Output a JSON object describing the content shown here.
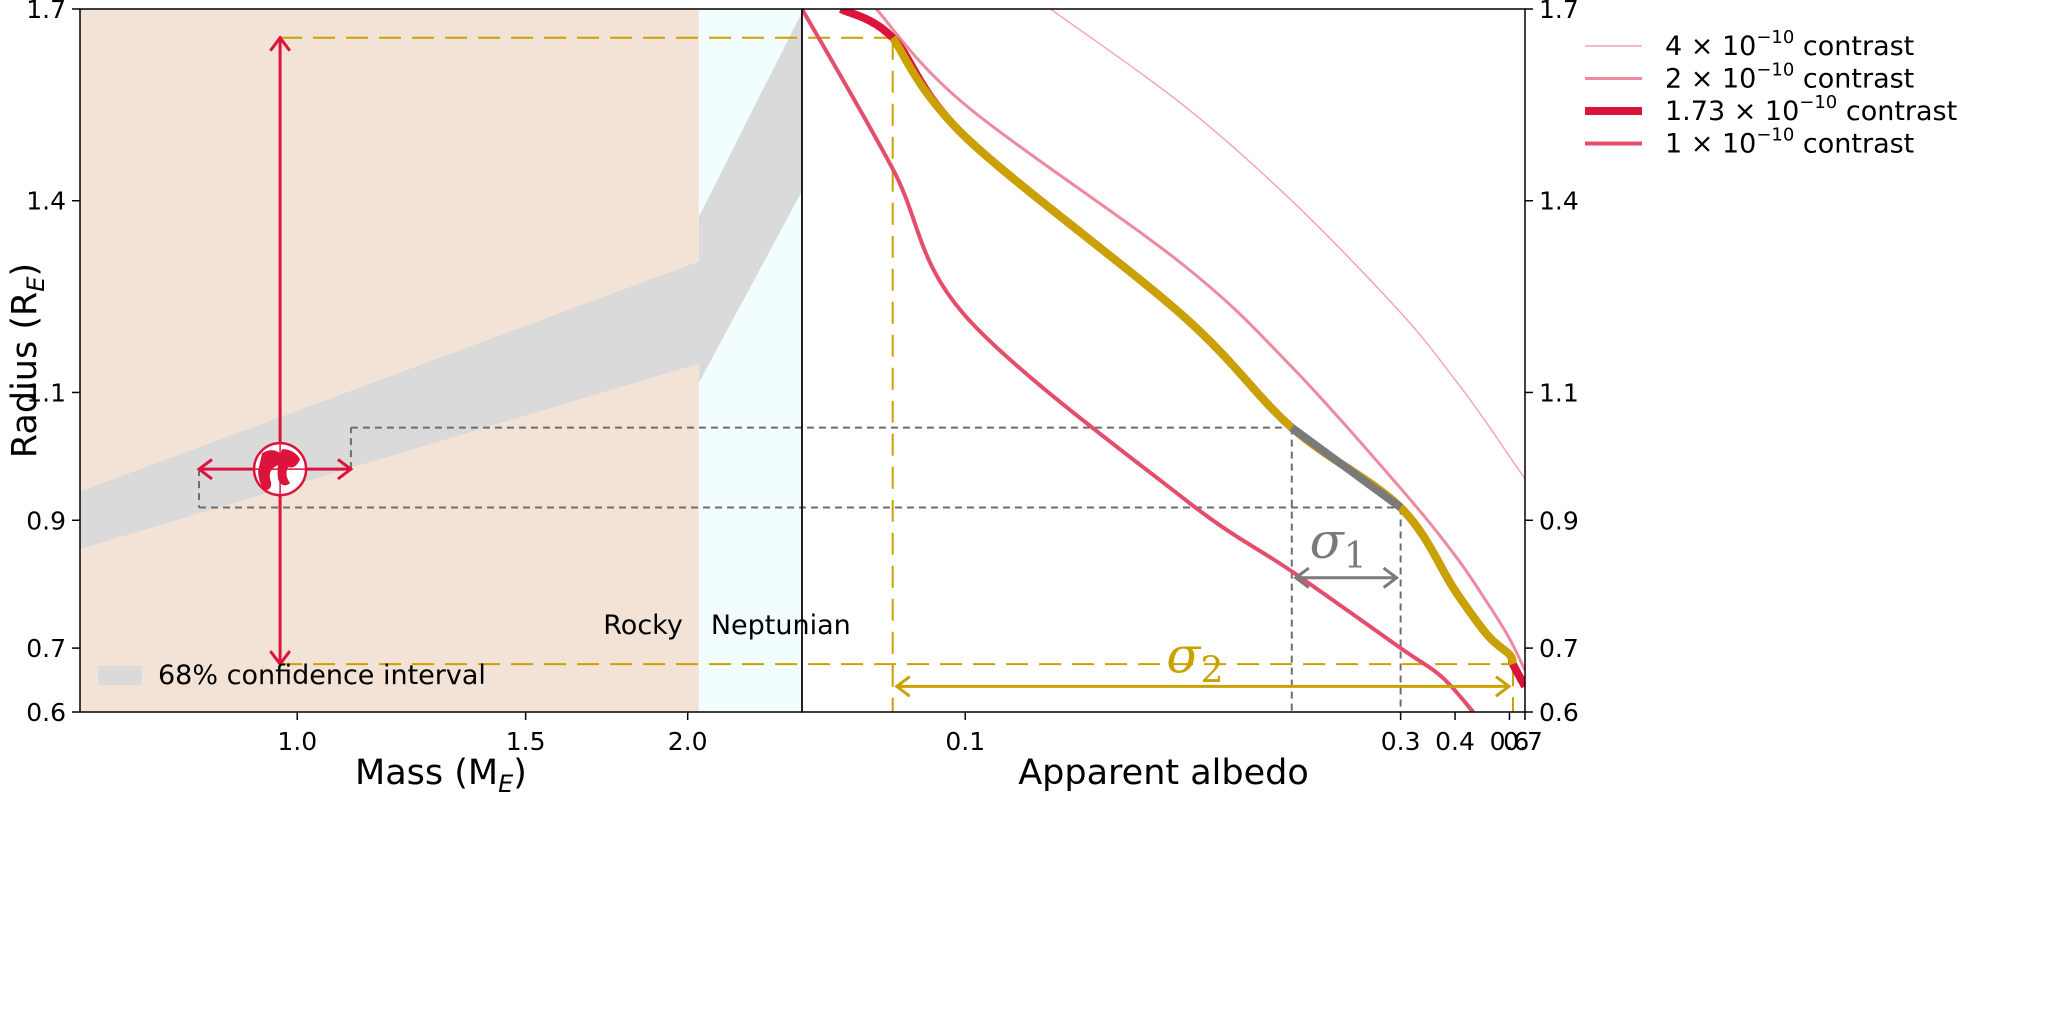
{
  "chart_data": [
    {
      "type": "area",
      "panel": "left",
      "xlabel": "Mass (M",
      "xlabel_sub": "E",
      "xlabel_suffix": ")",
      "ylabel": "Radius (R",
      "ylabel_sub": "E",
      "ylabel_suffix": ")",
      "xscale": "log",
      "xlim": [
        0.68,
        2.45
      ],
      "ylim": [
        0.6,
        1.7
      ],
      "xticks": [
        {
          "value": 1.0,
          "label": "1.0"
        },
        {
          "value": 1.5,
          "label": "1.5"
        },
        {
          "value": 2.0,
          "label": "2.0"
        }
      ],
      "yticks": [
        {
          "value": 0.6,
          "label": "0.6"
        },
        {
          "value": 0.7,
          "label": "0.7"
        },
        {
          "value": 0.9,
          "label": "0.9"
        },
        {
          "value": 1.1,
          "label": "1.1"
        },
        {
          "value": 1.4,
          "label": "1.4"
        },
        {
          "value": 1.7,
          "label": "1.7"
        }
      ],
      "regions": [
        {
          "label": "Rocky",
          "x_from": 0.68,
          "x_to": 2.04,
          "color": "#f3e3d7"
        },
        {
          "label": "Neptunian",
          "x_from": 2.04,
          "x_to": 2.45,
          "color": "#f2fdfd"
        }
      ],
      "confidence_band": {
        "legend": "68% confidence interval",
        "color": "#dadada",
        "segments": [
          {
            "x": [
              0.68,
              2.04
            ],
            "lower": [
              0.855,
              1.145
            ],
            "upper": [
              0.945,
              1.305
            ]
          },
          {
            "x": [
              2.04,
              2.45
            ],
            "lower": [
              1.115,
              1.415
            ],
            "upper": [
              1.375,
              1.695
            ]
          }
        ]
      },
      "point": {
        "name": "Earth",
        "x": 0.97,
        "y": 0.98,
        "x_err": [
          0.84,
          1.1
        ],
        "y_err": [
          0.675,
          1.655
        ],
        "color": "#dc143c"
      },
      "mass_projection_box": {
        "x": [
          0.84,
          1.1
        ],
        "y": [
          0.92,
          1.045
        ],
        "color": "#6e6e6e"
      },
      "radius_projection": {
        "y": [
          0.675,
          1.655
        ],
        "color": "#c9a200"
      }
    },
    {
      "type": "line",
      "panel": "right",
      "xlabel": "Apparent albedo",
      "xscale": "reciprocal",
      "xlim": [
        0.08,
        0.7
      ],
      "ylim": [
        0.6,
        1.7
      ],
      "xticks": [
        {
          "value": 0.1,
          "label": "0.1"
        },
        {
          "value": 0.3,
          "label": "0.3"
        },
        {
          "value": 0.4,
          "label": "0.4"
        },
        {
          "value": 0.6,
          "label": "0.6"
        },
        {
          "value": 0.7,
          "label": "0.7"
        }
      ],
      "yticks": [
        {
          "value": 0.6,
          "label": "0.6"
        },
        {
          "value": 0.7,
          "label": "0.7"
        },
        {
          "value": 0.9,
          "label": "0.9"
        },
        {
          "value": 1.1,
          "label": "1.1"
        },
        {
          "value": 1.4,
          "label": "1.4"
        },
        {
          "value": 1.7,
          "label": "1.7"
        }
      ],
      "legend_position": "top-right",
      "series": [
        {
          "legend_prefix": "4 × 10",
          "legend_exp": "−10",
          "legend_suffix": " contrast",
          "color": "#f4a6b8",
          "width": 1.5,
          "points": [
            [
              0.115,
              1.7
            ],
            [
              0.15,
              1.55
            ],
            [
              0.2,
              1.4
            ],
            [
              0.3,
              1.225
            ],
            [
              0.4,
              1.12
            ],
            [
              0.5,
              1.05
            ],
            [
              0.6,
              1.0
            ],
            [
              0.7,
              0.965
            ]
          ]
        },
        {
          "legend_prefix": "2 × 10",
          "legend_exp": "−10",
          "legend_suffix": " contrast",
          "color": "#ee8aa0",
          "width": 3,
          "points": [
            [
              0.088,
              1.7
            ],
            [
              0.1,
              1.55
            ],
            [
              0.15,
              1.3
            ],
            [
              0.2,
              1.14
            ],
            [
              0.3,
              0.95
            ],
            [
              0.4,
              0.845
            ],
            [
              0.5,
              0.77
            ],
            [
              0.6,
              0.715
            ],
            [
              0.7,
              0.665
            ]
          ]
        },
        {
          "legend_prefix": "1.73 × 10",
          "legend_exp": "−10",
          "legend_suffix": " contrast",
          "color": "#dc143c",
          "width": 8,
          "points": [
            [
              0.084,
              1.7
            ],
            [
              0.09,
              1.655
            ],
            [
              0.1,
              1.5
            ],
            [
              0.15,
              1.22
            ],
            [
              0.2,
              1.045
            ],
            [
              0.3,
              0.92
            ],
            [
              0.4,
              0.79
            ],
            [
              0.5,
              0.72
            ],
            [
              0.6,
              0.69
            ],
            [
              0.62,
              0.675
            ],
            [
              0.7,
              0.64
            ]
          ]
        },
        {
          "legend_prefix": "1 × 10",
          "legend_exp": "−10",
          "legend_suffix": " contrast",
          "color": "#e44d6c",
          "width": 4,
          "points": [
            [
              0.08,
              1.7
            ],
            [
              0.09,
              1.45
            ],
            [
              0.1,
              1.22
            ],
            [
              0.15,
              0.935
            ],
            [
              0.2,
              0.82
            ],
            [
              0.3,
              0.7
            ],
            [
              0.37,
              0.655
            ],
            [
              0.45,
              0.6
            ]
          ]
        }
      ],
      "highlights": [
        {
          "on_series": 2,
          "y_range": [
            0.675,
            1.655
          ],
          "color": "#c9a200",
          "width": 8
        },
        {
          "on_series": 2,
          "y_range": [
            0.92,
            1.045
          ],
          "color": "#7a7a7a",
          "width": 8
        }
      ],
      "annotations": [
        {
          "label": "σ",
          "sub": "1",
          "color": "#7a7a7a",
          "x_range": [
            0.2,
            0.3
          ],
          "y": 0.81,
          "style": "dashed"
        },
        {
          "label": "σ",
          "sub": "2",
          "color": "#c9a200",
          "x_range": [
            0.09,
            0.62
          ],
          "y": 0.64,
          "style": "long-dashed"
        }
      ]
    }
  ]
}
